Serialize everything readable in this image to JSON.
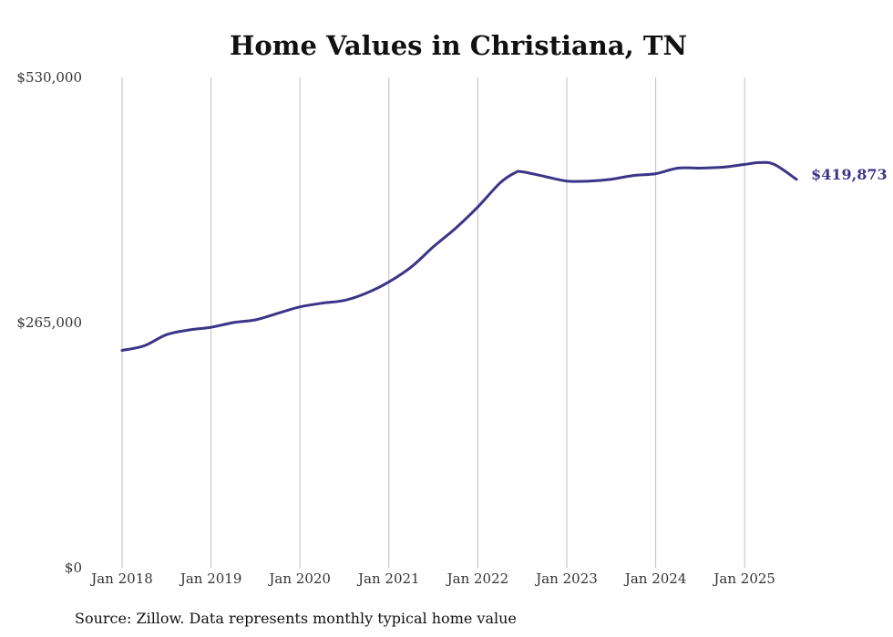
{
  "chart_data": {
    "type": "line",
    "title": "Home Values in Christiana, TN",
    "source": "Source: Zillow. Data represents monthly typical home value",
    "ylim": [
      0,
      530000
    ],
    "yticks": [
      0,
      265000,
      530000
    ],
    "ytick_labels": [
      "$0",
      "$265,000",
      "$530,000"
    ],
    "xticks": [
      "2018-01",
      "2019-01",
      "2020-01",
      "2021-01",
      "2022-01",
      "2023-01",
      "2024-01",
      "2025-01"
    ],
    "xtick_labels": [
      "Jan 2018",
      "Jan 2019",
      "Jan 2020",
      "Jan 2021",
      "Jan 2022",
      "Jan 2023",
      "Jan 2024",
      "Jan 2025"
    ],
    "grid": {
      "vertical": true,
      "horizontal": false
    },
    "end_label": "$419,873",
    "color": "#3b3587",
    "series": [
      {
        "x": [
          "2018-01",
          "2018-04",
          "2018-07",
          "2018-10",
          "2019-01",
          "2019-04",
          "2019-07",
          "2019-10",
          "2020-01",
          "2020-04",
          "2020-07",
          "2020-10",
          "2021-01",
          "2021-04",
          "2021-07",
          "2021-10",
          "2022-01",
          "2022-04",
          "2022-06",
          "2022-07",
          "2022-10",
          "2023-01",
          "2023-04",
          "2023-07",
          "2023-10",
          "2024-01",
          "2024-04",
          "2024-07",
          "2024-10",
          "2025-01",
          "2025-03",
          "2025-05",
          "2025-08"
        ],
        "values": [
          235000,
          240000,
          252000,
          257000,
          260000,
          265000,
          268000,
          275000,
          282000,
          286000,
          289000,
          297000,
          309000,
          325000,
          347000,
          367000,
          390000,
          416000,
          427000,
          428000,
          423000,
          418000,
          418000,
          420000,
          424000,
          426000,
          432000,
          432000,
          433000,
          436000,
          438000,
          436000,
          419873
        ]
      }
    ]
  }
}
